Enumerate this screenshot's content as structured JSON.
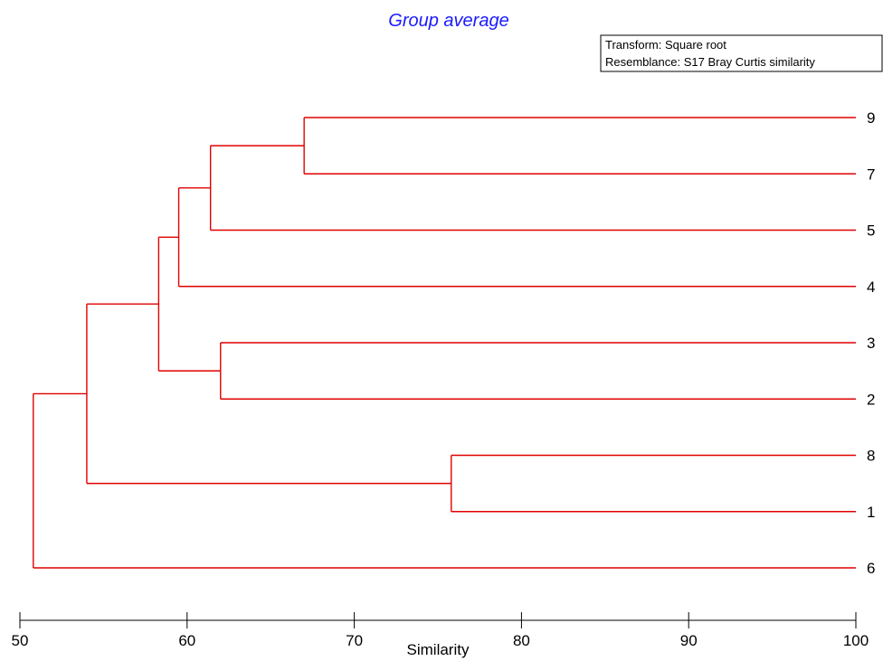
{
  "colors": {
    "title": "#1a1aff",
    "branch": "#e00000",
    "axis": "#000000",
    "text": "#000000"
  },
  "legend": {
    "transform": "Transform: Square root",
    "resemblance": "Resemblance: S17 Bray Curtis similarity"
  },
  "chart_data": {
    "type": "dendrogram",
    "title": "Group average",
    "xlabel": "Similarity",
    "xlim": [
      50,
      100
    ],
    "xticks": [
      50,
      60,
      70,
      80,
      90,
      100
    ],
    "orientation": "leaves-right",
    "leaves": [
      "9",
      "7",
      "5",
      "4",
      "3",
      "2",
      "8",
      "1",
      "6"
    ],
    "merges": [
      {
        "children": [
          "9",
          "7"
        ],
        "similarity": 67.0
      },
      {
        "children": [
          "3",
          "2"
        ],
        "similarity": 62.0
      },
      {
        "children": [
          "8",
          "1"
        ],
        "similarity": 75.8
      },
      {
        "children": [
          0,
          "5"
        ],
        "similarity": 61.4
      },
      {
        "children": [
          3,
          "4"
        ],
        "similarity": 59.5
      },
      {
        "children": [
          4,
          1
        ],
        "similarity": 58.3
      },
      {
        "children": [
          5,
          2
        ],
        "similarity": 54.0
      },
      {
        "children": [
          6,
          "6"
        ],
        "similarity": 50.8
      }
    ]
  }
}
